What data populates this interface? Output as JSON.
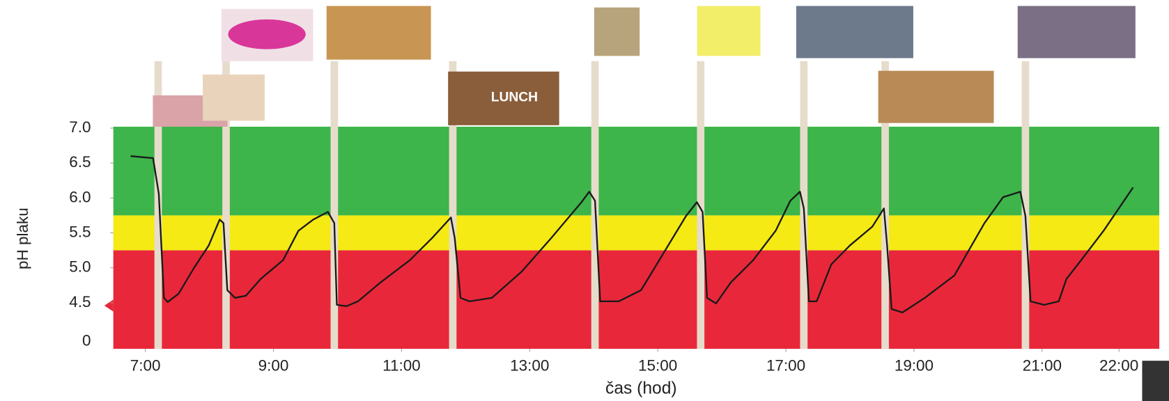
{
  "chart_data": {
    "type": "line",
    "x_label": "čas (hod)",
    "y_label": "pH plaku",
    "xlim": [
      6.5,
      22.83
    ],
    "ylim": [
      3.84,
      7.02
    ],
    "xticks": [
      {
        "value": 7,
        "label": "7:00"
      },
      {
        "value": 9,
        "label": "9:00"
      },
      {
        "value": 11,
        "label": "11:00"
      },
      {
        "value": 13,
        "label": "13:00"
      },
      {
        "value": 15,
        "label": "15:00"
      },
      {
        "value": 17,
        "label": "17:00"
      },
      {
        "value": 19,
        "label": "19:00"
      },
      {
        "value": 21,
        "label": "21:00"
      },
      {
        "value": 22.2,
        "label": "22:00"
      }
    ],
    "yticks": [
      {
        "value": 7.0,
        "label": "7.0"
      },
      {
        "value": 6.5,
        "label": "6.5"
      },
      {
        "value": 6.0,
        "label": "6.0"
      },
      {
        "value": 5.5,
        "label": "5.5"
      },
      {
        "value": 5.0,
        "label": "5.0"
      },
      {
        "value": 4.5,
        "label": "4.5"
      }
    ],
    "axis_break_label": "0",
    "bands": [
      {
        "from": 5.75,
        "to": 7.02,
        "color": "#3db54a"
      },
      {
        "from": 5.25,
        "to": 5.75,
        "color": "#f5ea14"
      },
      {
        "from": 3.84,
        "to": 5.25,
        "color": "#e8283a"
      }
    ],
    "meals": [
      7.2,
      8.26,
      9.95,
      11.8,
      14.02,
      15.67,
      17.28,
      18.55,
      20.74
    ],
    "meal_color": "#e6dccb",
    "lunch_sign": "LUNCH",
    "color": "#1a1a1a",
    "x": [
      6.77,
      7.12,
      7.21,
      7.29,
      7.35,
      7.52,
      7.76,
      7.99,
      8.16,
      8.22,
      8.28,
      8.4,
      8.57,
      8.8,
      9.15,
      9.39,
      9.62,
      9.85,
      9.95,
      9.99,
      10.14,
      10.32,
      10.67,
      11.13,
      11.48,
      11.77,
      11.83,
      11.92,
      12.06,
      12.41,
      12.88,
      13.34,
      13.81,
      13.93,
      14.02,
      14.1,
      14.39,
      14.74,
      15.09,
      15.44,
      15.61,
      15.7,
      15.77,
      15.91,
      16.14,
      16.49,
      16.84,
      17.07,
      17.22,
      17.28,
      17.36,
      17.48,
      17.71,
      18.0,
      18.35,
      18.53,
      18.58,
      18.65,
      18.82,
      19.17,
      19.63,
      20.1,
      20.39,
      20.66,
      20.74,
      20.82,
      21.03,
      21.26,
      21.38,
      21.61,
      21.96,
      22.42
    ],
    "values": [
      6.6,
      6.57,
      6.06,
      4.57,
      4.51,
      4.63,
      5.0,
      5.32,
      5.69,
      5.64,
      4.68,
      4.57,
      4.6,
      4.84,
      5.11,
      5.53,
      5.69,
      5.8,
      5.64,
      4.47,
      4.45,
      4.52,
      4.79,
      5.11,
      5.43,
      5.72,
      5.43,
      4.57,
      4.52,
      4.57,
      4.95,
      5.43,
      5.94,
      6.09,
      5.96,
      4.52,
      4.52,
      4.68,
      5.21,
      5.74,
      5.94,
      5.8,
      4.57,
      4.49,
      4.79,
      5.11,
      5.53,
      5.96,
      6.09,
      5.85,
      4.52,
      4.52,
      5.05,
      5.32,
      5.59,
      5.85,
      5.32,
      4.41,
      4.36,
      4.57,
      4.89,
      5.64,
      6.01,
      6.09,
      5.74,
      4.52,
      4.47,
      4.52,
      4.84,
      5.11,
      5.53,
      6.15
    ]
  }
}
